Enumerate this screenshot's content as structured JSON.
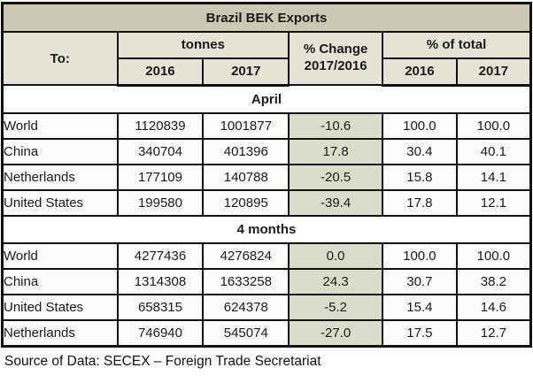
{
  "title": "Brazil BEK Exports",
  "header": {
    "to_label": "To:",
    "tonnes_label": "tonnes",
    "pct_change_label": "% Change",
    "pct_change_sub": "2017/2016",
    "pct_total_label": "% of total",
    "tonnes_year_2016": "2016",
    "tonnes_year_2017": "2017",
    "pct_year_2016": "2016",
    "pct_year_2017": "2017"
  },
  "sections": [
    {
      "label": "April",
      "rows": [
        {
          "to": "World",
          "t2016": "1120839",
          "t2017": "1001877",
          "change": "-10.6",
          "p2016": "100.0",
          "p2017": "100.0"
        },
        {
          "to": "China",
          "t2016": "340704",
          "t2017": "401396",
          "change": "17.8",
          "p2016": "30.4",
          "p2017": "40.1"
        },
        {
          "to": "Netherlands",
          "t2016": "177109",
          "t2017": "140788",
          "change": "-20.5",
          "p2016": "15.8",
          "p2017": "14.1"
        },
        {
          "to": "United States",
          "t2016": "199580",
          "t2017": "120895",
          "change": "-39.4",
          "p2016": "17.8",
          "p2017": "12.1"
        }
      ]
    },
    {
      "label": "4 months",
      "rows": [
        {
          "to": "World",
          "t2016": "4277436",
          "t2017": "4276824",
          "change": "0.0",
          "p2016": "100.0",
          "p2017": "100.0"
        },
        {
          "to": "China",
          "t2016": "1314308",
          "t2017": "1633258",
          "change": "24.3",
          "p2016": "30.7",
          "p2017": "38.2"
        },
        {
          "to": "United States",
          "t2016": "658315",
          "t2017": "624378",
          "change": "-5.2",
          "p2016": "15.4",
          "p2017": "14.6"
        },
        {
          "to": "Netherlands",
          "t2016": "746940",
          "t2017": "545074",
          "change": "-27.0",
          "p2016": "17.5",
          "p2017": "12.7"
        }
      ]
    }
  ],
  "source": "Source of Data: SECEX – Foreign Trade Secretariat",
  "colors": {
    "title_bg": "#cbc9b3",
    "header_bg": "#e4e3d6",
    "change_col_bg": "#dcdccb",
    "cell_bg": "#fbfbf9",
    "border": "#111111",
    "text": "#1a1a1a"
  },
  "chart_data": {
    "type": "table",
    "title": "Brazil BEK Exports",
    "columns": [
      "To:",
      "tonnes 2016",
      "tonnes 2017",
      "% Change 2017/2016",
      "% of total 2016",
      "% of total 2017"
    ],
    "sections": [
      {
        "label": "April",
        "rows": [
          [
            "World",
            1120839,
            1001877,
            -10.6,
            100.0,
            100.0
          ],
          [
            "China",
            340704,
            401396,
            17.8,
            30.4,
            40.1
          ],
          [
            "Netherlands",
            177109,
            140788,
            -20.5,
            15.8,
            14.1
          ],
          [
            "United States",
            199580,
            120895,
            -39.4,
            17.8,
            12.1
          ]
        ]
      },
      {
        "label": "4 months",
        "rows": [
          [
            "World",
            4277436,
            4276824,
            0.0,
            100.0,
            100.0
          ],
          [
            "China",
            1314308,
            1633258,
            24.3,
            30.7,
            38.2
          ],
          [
            "United States",
            658315,
            624378,
            -5.2,
            15.4,
            14.6
          ],
          [
            "Netherlands",
            746940,
            545074,
            -27.0,
            17.5,
            12.7
          ]
        ]
      }
    ],
    "source_note": "Source of Data: SECEX – Foreign Trade Secretariat"
  }
}
